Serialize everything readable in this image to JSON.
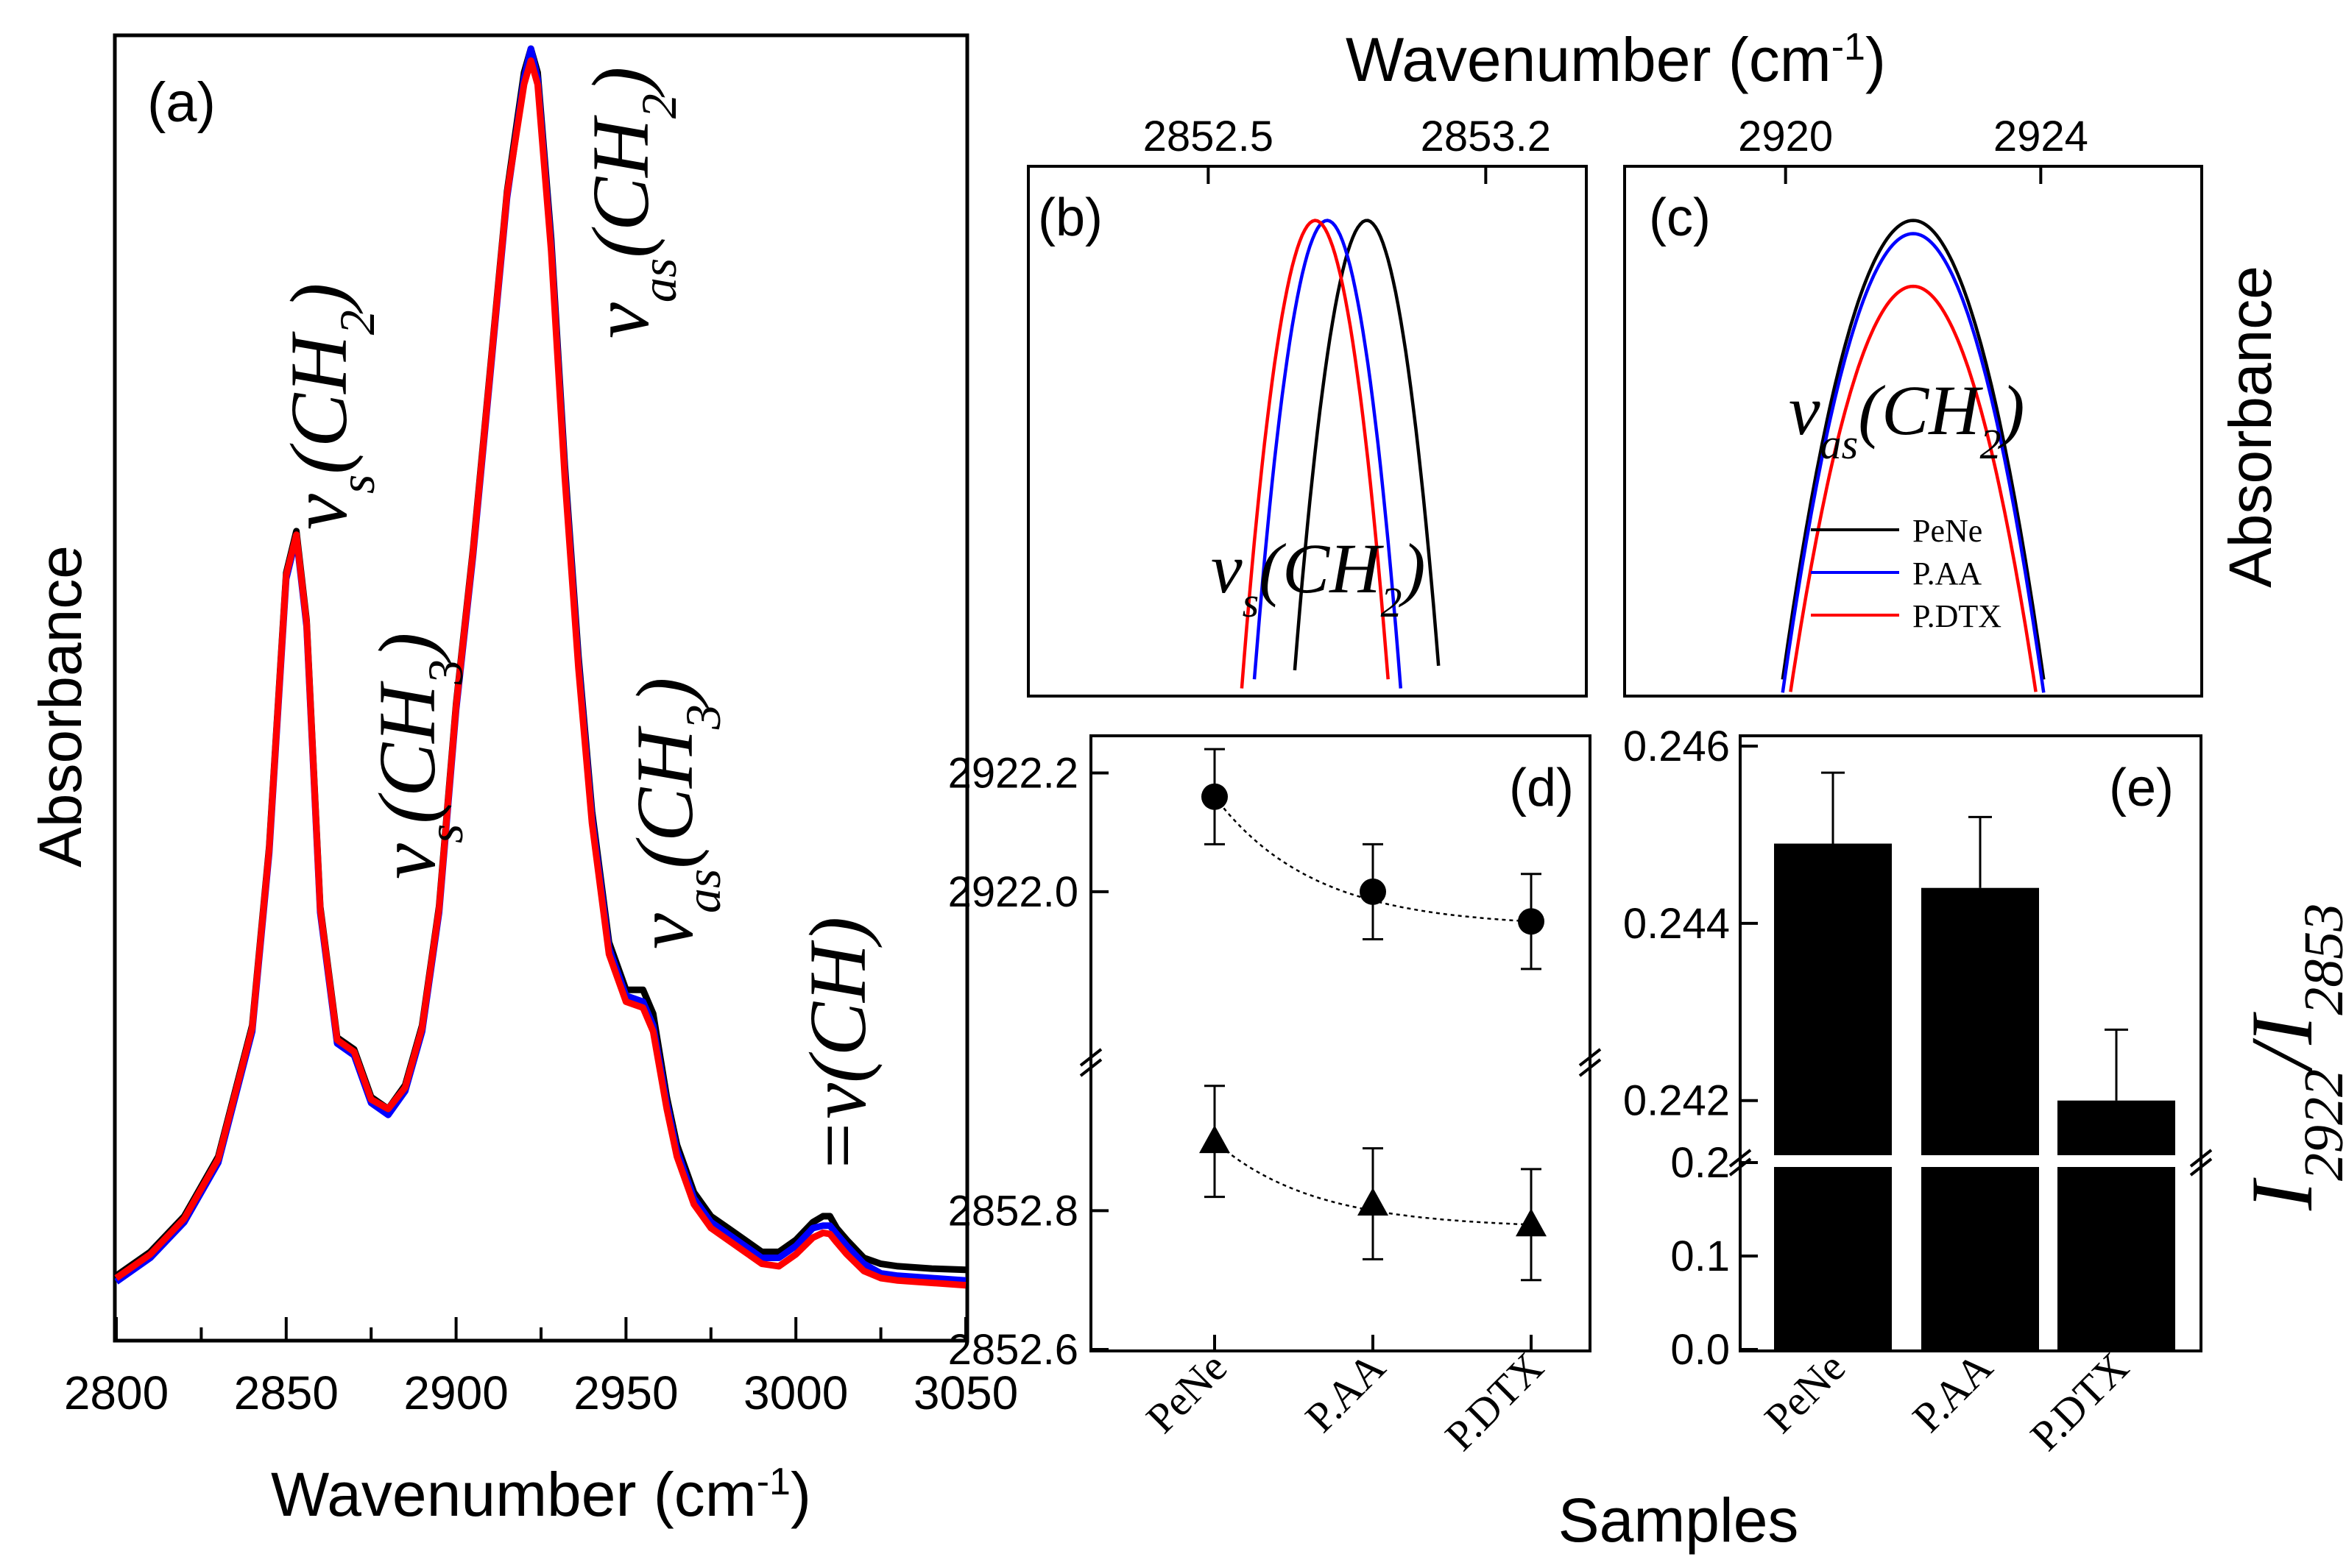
{
  "figure": {
    "xlabel_bottom": "Wavenumber (cm",
    "xlabel_top": "Wavenumber (cm",
    "xlabel_sup": "-1",
    "xlabel_close": ")",
    "ylabel_left": "Absorbance",
    "ylabel_right": "Absorbance",
    "samples_label": "Samples",
    "ratio_label_base": "I",
    "ratio_label_num": "2922",
    "ratio_label_slash": "/I",
    "ratio_label_den": "2853"
  },
  "legend": [
    {
      "name": "PeNe",
      "color": "#000000"
    },
    {
      "name": "P.AA",
      "color": "#0000ff"
    },
    {
      "name": "P.DTX",
      "color": "#ff0000"
    }
  ],
  "chart_data": [
    {
      "id": "a",
      "type": "line",
      "panel_label": "(a)",
      "xlabel": "Wavenumber (cm-1)",
      "ylabel": "Absorbance",
      "xlim": [
        2800,
        3050
      ],
      "xticks": [
        2800,
        2850,
        2900,
        2950,
        3000,
        3050
      ],
      "ylim": [
        0,
        1.05
      ],
      "annotations": [
        {
          "base": "ν",
          "sub": "s",
          "group": "(CH",
          "groupsub": "2",
          "close": ")",
          "x": 2855
        },
        {
          "base": "ν",
          "sub": "s",
          "group": "(CH",
          "groupsub": "3",
          "close": ")",
          "x": 2878
        },
        {
          "base": "ν",
          "sub": "as",
          "group": "(CH",
          "groupsub": "2",
          "close": ")",
          "x": 2930
        },
        {
          "base": "ν",
          "sub": "as",
          "group": "(CH",
          "groupsub": "3",
          "close": ")",
          "x": 2962
        },
        {
          "base": "=ν(CH)",
          "sub": "",
          "group": "",
          "groupsub": "",
          "close": "",
          "x": 3010
        }
      ],
      "series": [
        {
          "name": "PeNe",
          "color": "#000000",
          "x": [
            2800,
            2810,
            2820,
            2830,
            2840,
            2845,
            2850,
            2853,
            2856,
            2860,
            2865,
            2870,
            2875,
            2880,
            2885,
            2890,
            2895,
            2900,
            2905,
            2910,
            2915,
            2920,
            2922,
            2924,
            2928,
            2932,
            2936,
            2940,
            2945,
            2950,
            2955,
            2958,
            2962,
            2965,
            2970,
            2975,
            2980,
            2985,
            2990,
            2995,
            3000,
            3005,
            3008,
            3010,
            3012,
            3015,
            3020,
            3025,
            3030,
            3040,
            3050
          ],
          "y": [
            0.01,
            0.03,
            0.06,
            0.11,
            0.22,
            0.37,
            0.6,
            0.635,
            0.56,
            0.32,
            0.21,
            0.2,
            0.16,
            0.15,
            0.17,
            0.22,
            0.32,
            0.49,
            0.62,
            0.77,
            0.92,
            1.02,
            1.04,
            1.02,
            0.88,
            0.69,
            0.53,
            0.4,
            0.29,
            0.25,
            0.25,
            0.23,
            0.16,
            0.12,
            0.08,
            0.06,
            0.05,
            0.04,
            0.03,
            0.03,
            0.04,
            0.055,
            0.06,
            0.06,
            0.05,
            0.04,
            0.025,
            0.02,
            0.018,
            0.016,
            0.015
          ]
        },
        {
          "name": "P.AA",
          "color": "#0000ff",
          "x": [
            2800,
            2810,
            2820,
            2830,
            2840,
            2845,
            2850,
            2853,
            2856,
            2860,
            2865,
            2870,
            2875,
            2880,
            2885,
            2890,
            2895,
            2900,
            2905,
            2910,
            2915,
            2920,
            2922,
            2924,
            2928,
            2932,
            2936,
            2940,
            2945,
            2950,
            2955,
            2958,
            2962,
            2965,
            2970,
            2975,
            2980,
            2985,
            2990,
            2995,
            3000,
            3005,
            3008,
            3010,
            3012,
            3015,
            3020,
            3025,
            3030,
            3040,
            3050
          ],
          "y": [
            0.005,
            0.025,
            0.055,
            0.105,
            0.215,
            0.365,
            0.595,
            0.63,
            0.555,
            0.315,
            0.205,
            0.195,
            0.155,
            0.145,
            0.165,
            0.215,
            0.315,
            0.485,
            0.615,
            0.765,
            0.915,
            1.015,
            1.04,
            1.015,
            0.875,
            0.685,
            0.525,
            0.395,
            0.285,
            0.245,
            0.24,
            0.22,
            0.155,
            0.115,
            0.075,
            0.055,
            0.045,
            0.035,
            0.025,
            0.025,
            0.035,
            0.05,
            0.052,
            0.052,
            0.045,
            0.035,
            0.02,
            0.012,
            0.01,
            0.008,
            0.006
          ]
        },
        {
          "name": "P.DTX",
          "color": "#ff0000",
          "x": [
            2800,
            2810,
            2820,
            2830,
            2840,
            2845,
            2850,
            2853,
            2856,
            2860,
            2865,
            2870,
            2875,
            2880,
            2885,
            2890,
            2895,
            2900,
            2905,
            2910,
            2915,
            2920,
            2922,
            2924,
            2928,
            2932,
            2936,
            2940,
            2945,
            2950,
            2955,
            2958,
            2962,
            2965,
            2970,
            2975,
            2980,
            2985,
            2990,
            2995,
            3000,
            3005,
            3008,
            3010,
            3012,
            3015,
            3020,
            3025,
            3030,
            3040,
            3050
          ],
          "y": [
            0.008,
            0.028,
            0.058,
            0.108,
            0.218,
            0.368,
            0.598,
            0.632,
            0.558,
            0.318,
            0.208,
            0.198,
            0.158,
            0.15,
            0.168,
            0.218,
            0.318,
            0.488,
            0.618,
            0.768,
            0.918,
            1.01,
            1.03,
            1.01,
            0.87,
            0.68,
            0.52,
            0.39,
            0.28,
            0.24,
            0.235,
            0.215,
            0.15,
            0.11,
            0.07,
            0.05,
            0.04,
            0.03,
            0.02,
            0.018,
            0.028,
            0.042,
            0.046,
            0.045,
            0.038,
            0.028,
            0.014,
            0.008,
            0.006,
            0.004,
            0.002
          ]
        }
      ]
    },
    {
      "id": "b",
      "type": "line",
      "panel_label": "(b)",
      "xlim": [
        2852.05,
        2853.45
      ],
      "xticks": [
        2852.5,
        2853.2
      ],
      "xtick_labels": [
        "2852.5",
        "2853.2"
      ],
      "ylim": [
        0.82,
        1.02
      ],
      "annotation": {
        "base": "ν",
        "sub": "s",
        "group": "(CH",
        "groupsub": "2",
        "close": ")"
      },
      "series": [
        {
          "name": "PeNe",
          "color": "#000000",
          "center": 2852.9,
          "peak": 1.0
        },
        {
          "name": "P.AA",
          "color": "#0000ff",
          "center": 2852.8,
          "peak": 1.0
        },
        {
          "name": "P.DTX",
          "color": "#ff0000",
          "center": 2852.77,
          "peak": 1.0
        }
      ]
    },
    {
      "id": "c",
      "type": "line",
      "panel_label": "(c)",
      "xlim": [
        2917.5,
        2926.5
      ],
      "xticks": [
        2920,
        2924
      ],
      "xtick_labels": [
        "2920",
        "2924"
      ],
      "ylim": [
        0.82,
        1.02
      ],
      "annotation": {
        "base": "ν",
        "sub": "as",
        "group": "(CH",
        "groupsub": "2",
        "close": ")"
      },
      "series": [
        {
          "name": "PeNe",
          "color": "#000000",
          "center": 2922.0,
          "peak": 1.0
        },
        {
          "name": "P.AA",
          "color": "#0000ff",
          "center": 2922.0,
          "peak": 0.995
        },
        {
          "name": "P.DTX",
          "color": "#ff0000",
          "center": 2922.0,
          "peak": 0.975
        }
      ]
    },
    {
      "id": "d",
      "type": "scatter",
      "panel_label": "(d)",
      "categories": [
        "PeNe",
        "P.AA",
        "P.DTX"
      ],
      "upper_segment": {
        "ylim": [
          2921.72,
          2922.26
        ],
        "yticks": [
          2922.0,
          2922.2
        ],
        "ytick_labels": [
          "2922.0",
          "2922.2"
        ],
        "marker": "circle",
        "values": [
          2922.16,
          2922.0,
          2921.95
        ],
        "errors": [
          0.08,
          0.08,
          0.08
        ]
      },
      "lower_segment": {
        "ylim": [
          2852.6,
          2853.02
        ],
        "yticks": [
          2852.6,
          2852.8
        ],
        "ytick_labels": [
          "2852.6",
          "2852.8"
        ],
        "marker": "triangle",
        "values": [
          2852.9,
          2852.81,
          2852.78
        ],
        "errors": [
          0.08,
          0.08,
          0.08
        ]
      }
    },
    {
      "id": "e",
      "type": "bar",
      "panel_label": "(e)",
      "categories": [
        "PeNe",
        "P.AA",
        "P.DTX"
      ],
      "values": [
        0.2449,
        0.2444,
        0.242
      ],
      "errors": [
        0.0008,
        0.0008,
        0.0008
      ],
      "lower_segment": {
        "ylim": [
          0.0,
          0.2
        ],
        "yticks": [
          0.0,
          0.1,
          0.2
        ],
        "ytick_labels": [
          "0.0",
          "0.1",
          "0.2"
        ]
      },
      "upper_segment": {
        "ylim": [
          0.2413,
          0.2461
        ],
        "yticks": [
          0.242,
          0.244,
          0.246
        ],
        "ytick_labels": [
          "0.242",
          "0.244",
          "0.246"
        ]
      }
    }
  ]
}
